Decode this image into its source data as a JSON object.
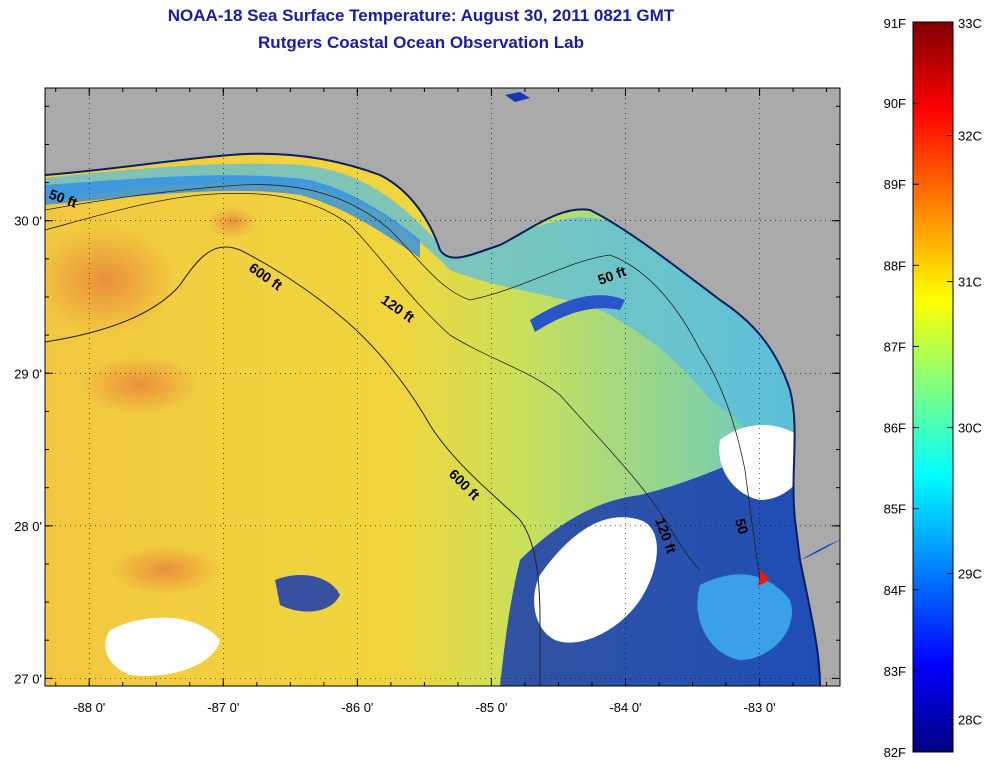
{
  "title": "NOAA-18 Sea Surface Temperature:  August 30, 2011 0821 GMT",
  "subtitle": "Rutgers Coastal Ocean Observation Lab",
  "map": {
    "lon_range": [
      -88.33,
      -82.4
    ],
    "lat_range": [
      26.95,
      30.87
    ],
    "x_ticks": [
      {
        "value": -88,
        "label": "-88 0'"
      },
      {
        "value": -87,
        "label": "-87 0'"
      },
      {
        "value": -86,
        "label": "-86 0'"
      },
      {
        "value": -85,
        "label": "-85 0'"
      },
      {
        "value": -84,
        "label": "-84 0'"
      },
      {
        "value": -83,
        "label": "-83 0'"
      }
    ],
    "y_ticks": [
      {
        "value": 27,
        "label": "27 0'"
      },
      {
        "value": 28,
        "label": "28 0'"
      },
      {
        "value": 29,
        "label": "29 0'"
      },
      {
        "value": 30,
        "label": "30 0'"
      }
    ],
    "contour_labels": [
      "50 ft",
      "600 ft",
      "120 ft",
      "50 ft",
      "600 ft",
      "120 ft",
      "50"
    ],
    "colors": {
      "land": "#aaaaaa",
      "warm_sea": "#f0d23c",
      "hot_sea": "#e89b3a",
      "cool_sea": "#3fa3ea",
      "cold_sea": "#0a2ea8",
      "cloud": "#ffffff"
    }
  },
  "colorbar": {
    "f_labels": [
      "91F",
      "90F",
      "89F",
      "88F",
      "87F",
      "86F",
      "85F",
      "84F",
      "83F",
      "82F"
    ],
    "c_labels": [
      "33C",
      "32C",
      "31C",
      "30C",
      "29C",
      "28C"
    ],
    "range_f": [
      82,
      91
    ],
    "colors": [
      "#000080",
      "#0000ff",
      "#00ffff",
      "#ffff00",
      "#ff0000",
      "#800000"
    ]
  }
}
